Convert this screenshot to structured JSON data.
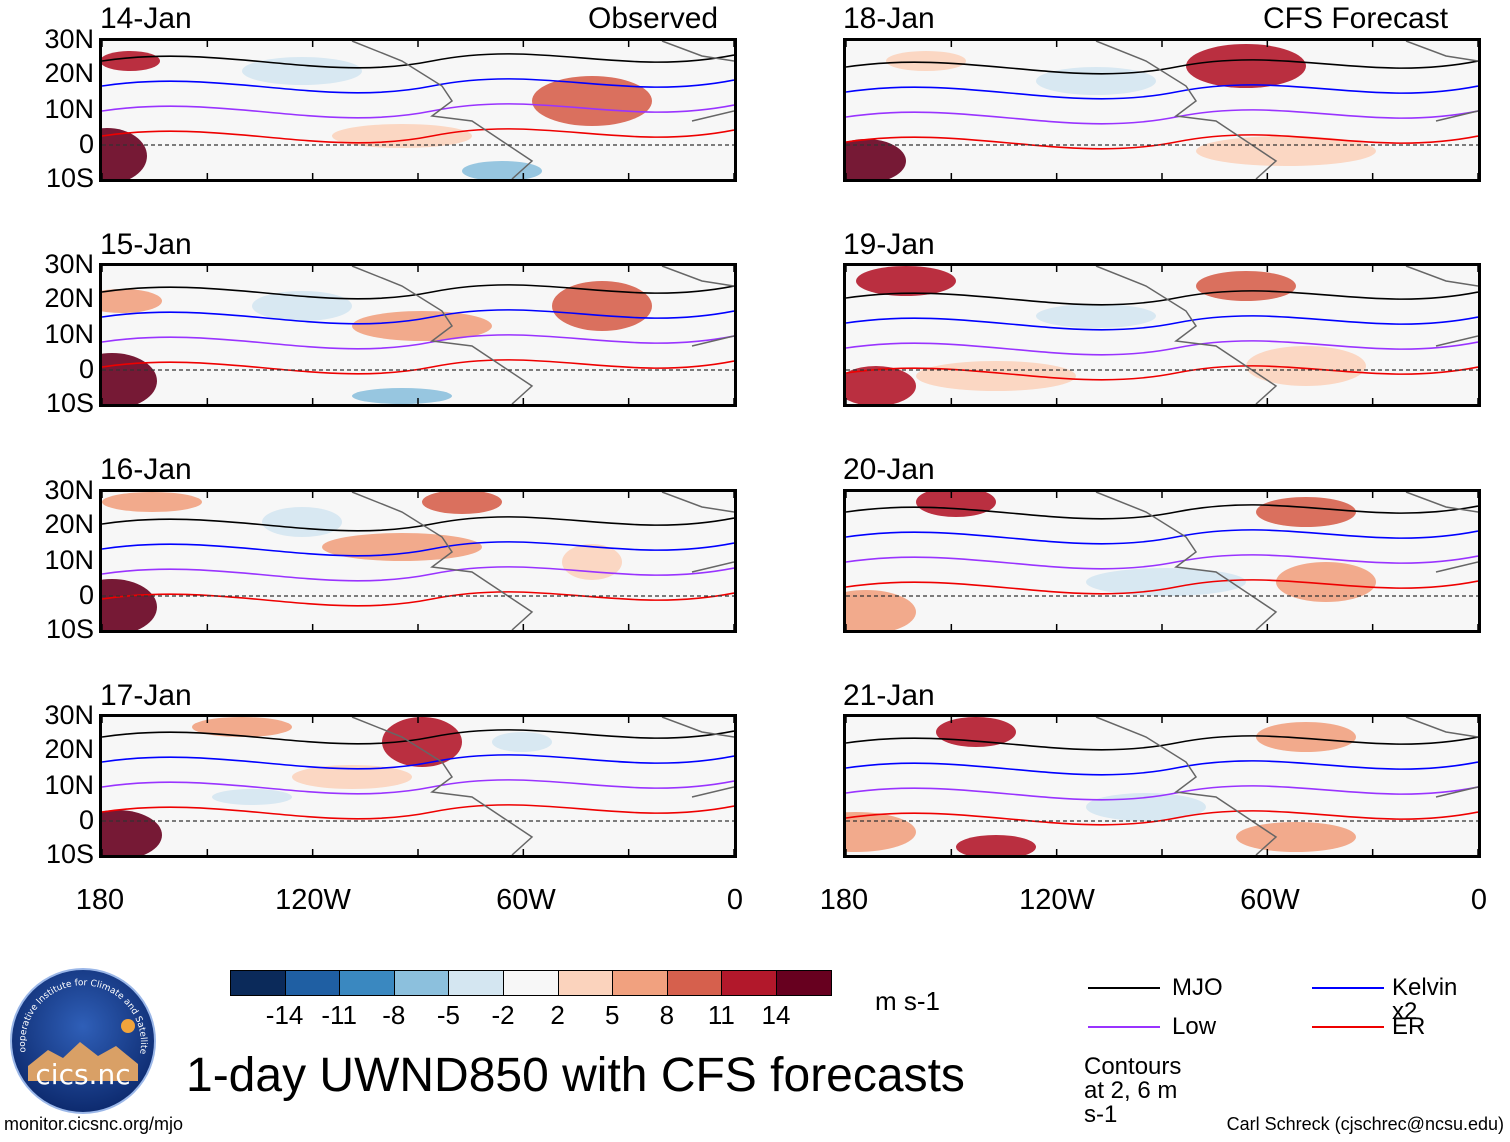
{
  "panels": [
    {
      "date": "14-Jan",
      "tag": "Observed"
    },
    {
      "date": "15-Jan",
      "tag": ""
    },
    {
      "date": "16-Jan",
      "tag": ""
    },
    {
      "date": "17-Jan",
      "tag": ""
    },
    {
      "date": "18-Jan",
      "tag": "CFS Forecast"
    },
    {
      "date": "19-Jan",
      "tag": ""
    },
    {
      "date": "20-Jan",
      "tag": ""
    },
    {
      "date": "21-Jan",
      "tag": ""
    }
  ],
  "lat_labels": [
    "30N",
    "20N",
    "10N",
    "0",
    "10S"
  ],
  "lon_labels": [
    "180",
    "120W",
    "60W",
    "0"
  ],
  "colorbar": {
    "labels": [
      "-14",
      "-11",
      "-8",
      "-5",
      "-2",
      "2",
      "5",
      "8",
      "11",
      "14"
    ],
    "colors": [
      "#0b2a5a",
      "#1f5fa3",
      "#3a88c0",
      "#8cc0dd",
      "#d4e6f1",
      "#f7f7f7",
      "#fbd3bd",
      "#f1a17f",
      "#d6604d",
      "#b2182b",
      "#67001f"
    ],
    "units": "m s-1"
  },
  "title": "1-day UWND850 with CFS forecasts",
  "logo_text": "cics.nc",
  "logo_ring_text": "Cooperative Institute for Climate and Satellites",
  "legend": {
    "items": [
      {
        "label": "MJO",
        "color": "#000000"
      },
      {
        "label": "Kelvin x2",
        "color": "#0000ff"
      },
      {
        "label": "Low",
        "color": "#9933ff"
      },
      {
        "label": "ER",
        "color": "#ee0000"
      }
    ],
    "note": "Contours at 2, 6 m s-1"
  },
  "footer": {
    "url": "monitor.cicsnc.org/mjo",
    "credit": "Carl Schreck (cjschrec@ncsu.edu)"
  }
}
